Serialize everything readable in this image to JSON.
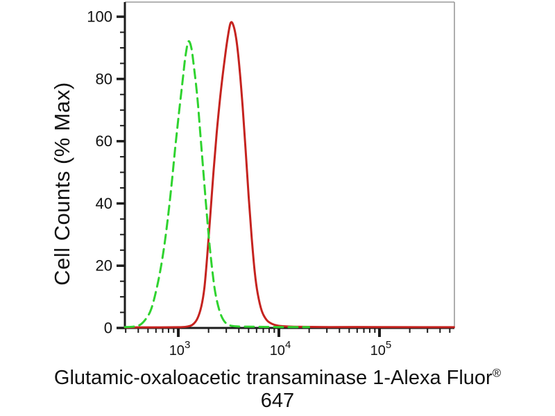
{
  "chart_data": {
    "type": "line",
    "subtype": "flow-cytometry-histogram-overlay",
    "title": "",
    "ylabel": "Cell Counts (% Max)",
    "xlabel_line1": "Glutamic-oxaloacetic transaminase 1-Alexa Fluor",
    "xlabel_registered": "®",
    "xlabel_line2": "647",
    "x_scale": "log10",
    "x_range_log10": [
      2.469,
      5.745
    ],
    "ylim": [
      0,
      104.7
    ],
    "grid": false,
    "legend": "none",
    "y_ticks": {
      "major": [
        {
          "label": "0",
          "value": 0
        },
        {
          "label": "20",
          "value": 20
        },
        {
          "label": "40",
          "value": 40
        },
        {
          "label": "60",
          "value": 60
        },
        {
          "label": "80",
          "value": 80
        },
        {
          "label": "100",
          "value": 100
        }
      ],
      "minor_step": 5
    },
    "x_ticks": {
      "major": [
        {
          "mantissa": "10",
          "exponent": "3",
          "log10": 3
        },
        {
          "mantissa": "10",
          "exponent": "4",
          "log10": 4
        },
        {
          "mantissa": "10",
          "exponent": "5",
          "log10": 5
        }
      ],
      "minor_mantissas": [
        2,
        3,
        4,
        5,
        6,
        7,
        8,
        9
      ],
      "minor_decades": [
        2,
        3,
        4,
        5
      ]
    },
    "colors": {
      "green_dashed": "#2fd32f",
      "red_solid": "#c5231f",
      "axis": "#1c1c1c",
      "frame": "#9a9a9a",
      "text": "#111111"
    },
    "series": [
      {
        "name": "red-solid",
        "line_style": "solid",
        "color_key": "red_solid",
        "peak_log10_x": 3.52,
        "peak_percent": 98,
        "points": [
          [
            2.47,
            0.2
          ],
          [
            2.75,
            0.2
          ],
          [
            3.0,
            0.25
          ],
          [
            3.08,
            0.4
          ],
          [
            3.14,
            1
          ],
          [
            3.19,
            3
          ],
          [
            3.23,
            7
          ],
          [
            3.26,
            13
          ],
          [
            3.29,
            24
          ],
          [
            3.32,
            37
          ],
          [
            3.35,
            50
          ],
          [
            3.38,
            62
          ],
          [
            3.41,
            72
          ],
          [
            3.43,
            78
          ],
          [
            3.46,
            86
          ],
          [
            3.49,
            93
          ],
          [
            3.52,
            98
          ],
          [
            3.55,
            97
          ],
          [
            3.58,
            92
          ],
          [
            3.61,
            83
          ],
          [
            3.64,
            71
          ],
          [
            3.67,
            57
          ],
          [
            3.7,
            42
          ],
          [
            3.73,
            29
          ],
          [
            3.76,
            18
          ],
          [
            3.79,
            11
          ],
          [
            3.83,
            5.5
          ],
          [
            3.88,
            2.5
          ],
          [
            3.94,
            1.2
          ],
          [
            4.02,
            0.6
          ],
          [
            4.15,
            0.4
          ],
          [
            4.5,
            0.3
          ],
          [
            5.0,
            0.3
          ],
          [
            5.45,
            0.25
          ],
          [
            5.74,
            0.25
          ]
        ]
      },
      {
        "name": "green-dashed",
        "line_style": "dashed",
        "color_key": "green_dashed",
        "peak_log10_x": 3.1,
        "peak_percent": 92,
        "points": [
          [
            2.47,
            0.3
          ],
          [
            2.55,
            0.4
          ],
          [
            2.62,
            1
          ],
          [
            2.68,
            3
          ],
          [
            2.73,
            6
          ],
          [
            2.78,
            12
          ],
          [
            2.83,
            20
          ],
          [
            2.88,
            31
          ],
          [
            2.93,
            45
          ],
          [
            2.97,
            58
          ],
          [
            3.01,
            70
          ],
          [
            3.045,
            80
          ],
          [
            3.07,
            87
          ],
          [
            3.1,
            92
          ],
          [
            3.13,
            90
          ],
          [
            3.155,
            84
          ],
          [
            3.19,
            74
          ],
          [
            3.22,
            62
          ],
          [
            3.25,
            50
          ],
          [
            3.28,
            38
          ],
          [
            3.31,
            27
          ],
          [
            3.34,
            18
          ],
          [
            3.37,
            11
          ],
          [
            3.41,
            5.5
          ],
          [
            3.45,
            2.5
          ],
          [
            3.5,
            1
          ],
          [
            3.58,
            0.5
          ],
          [
            3.75,
            0.4
          ],
          [
            4.0,
            0.3
          ],
          [
            4.3,
            0.3
          ]
        ]
      }
    ]
  }
}
